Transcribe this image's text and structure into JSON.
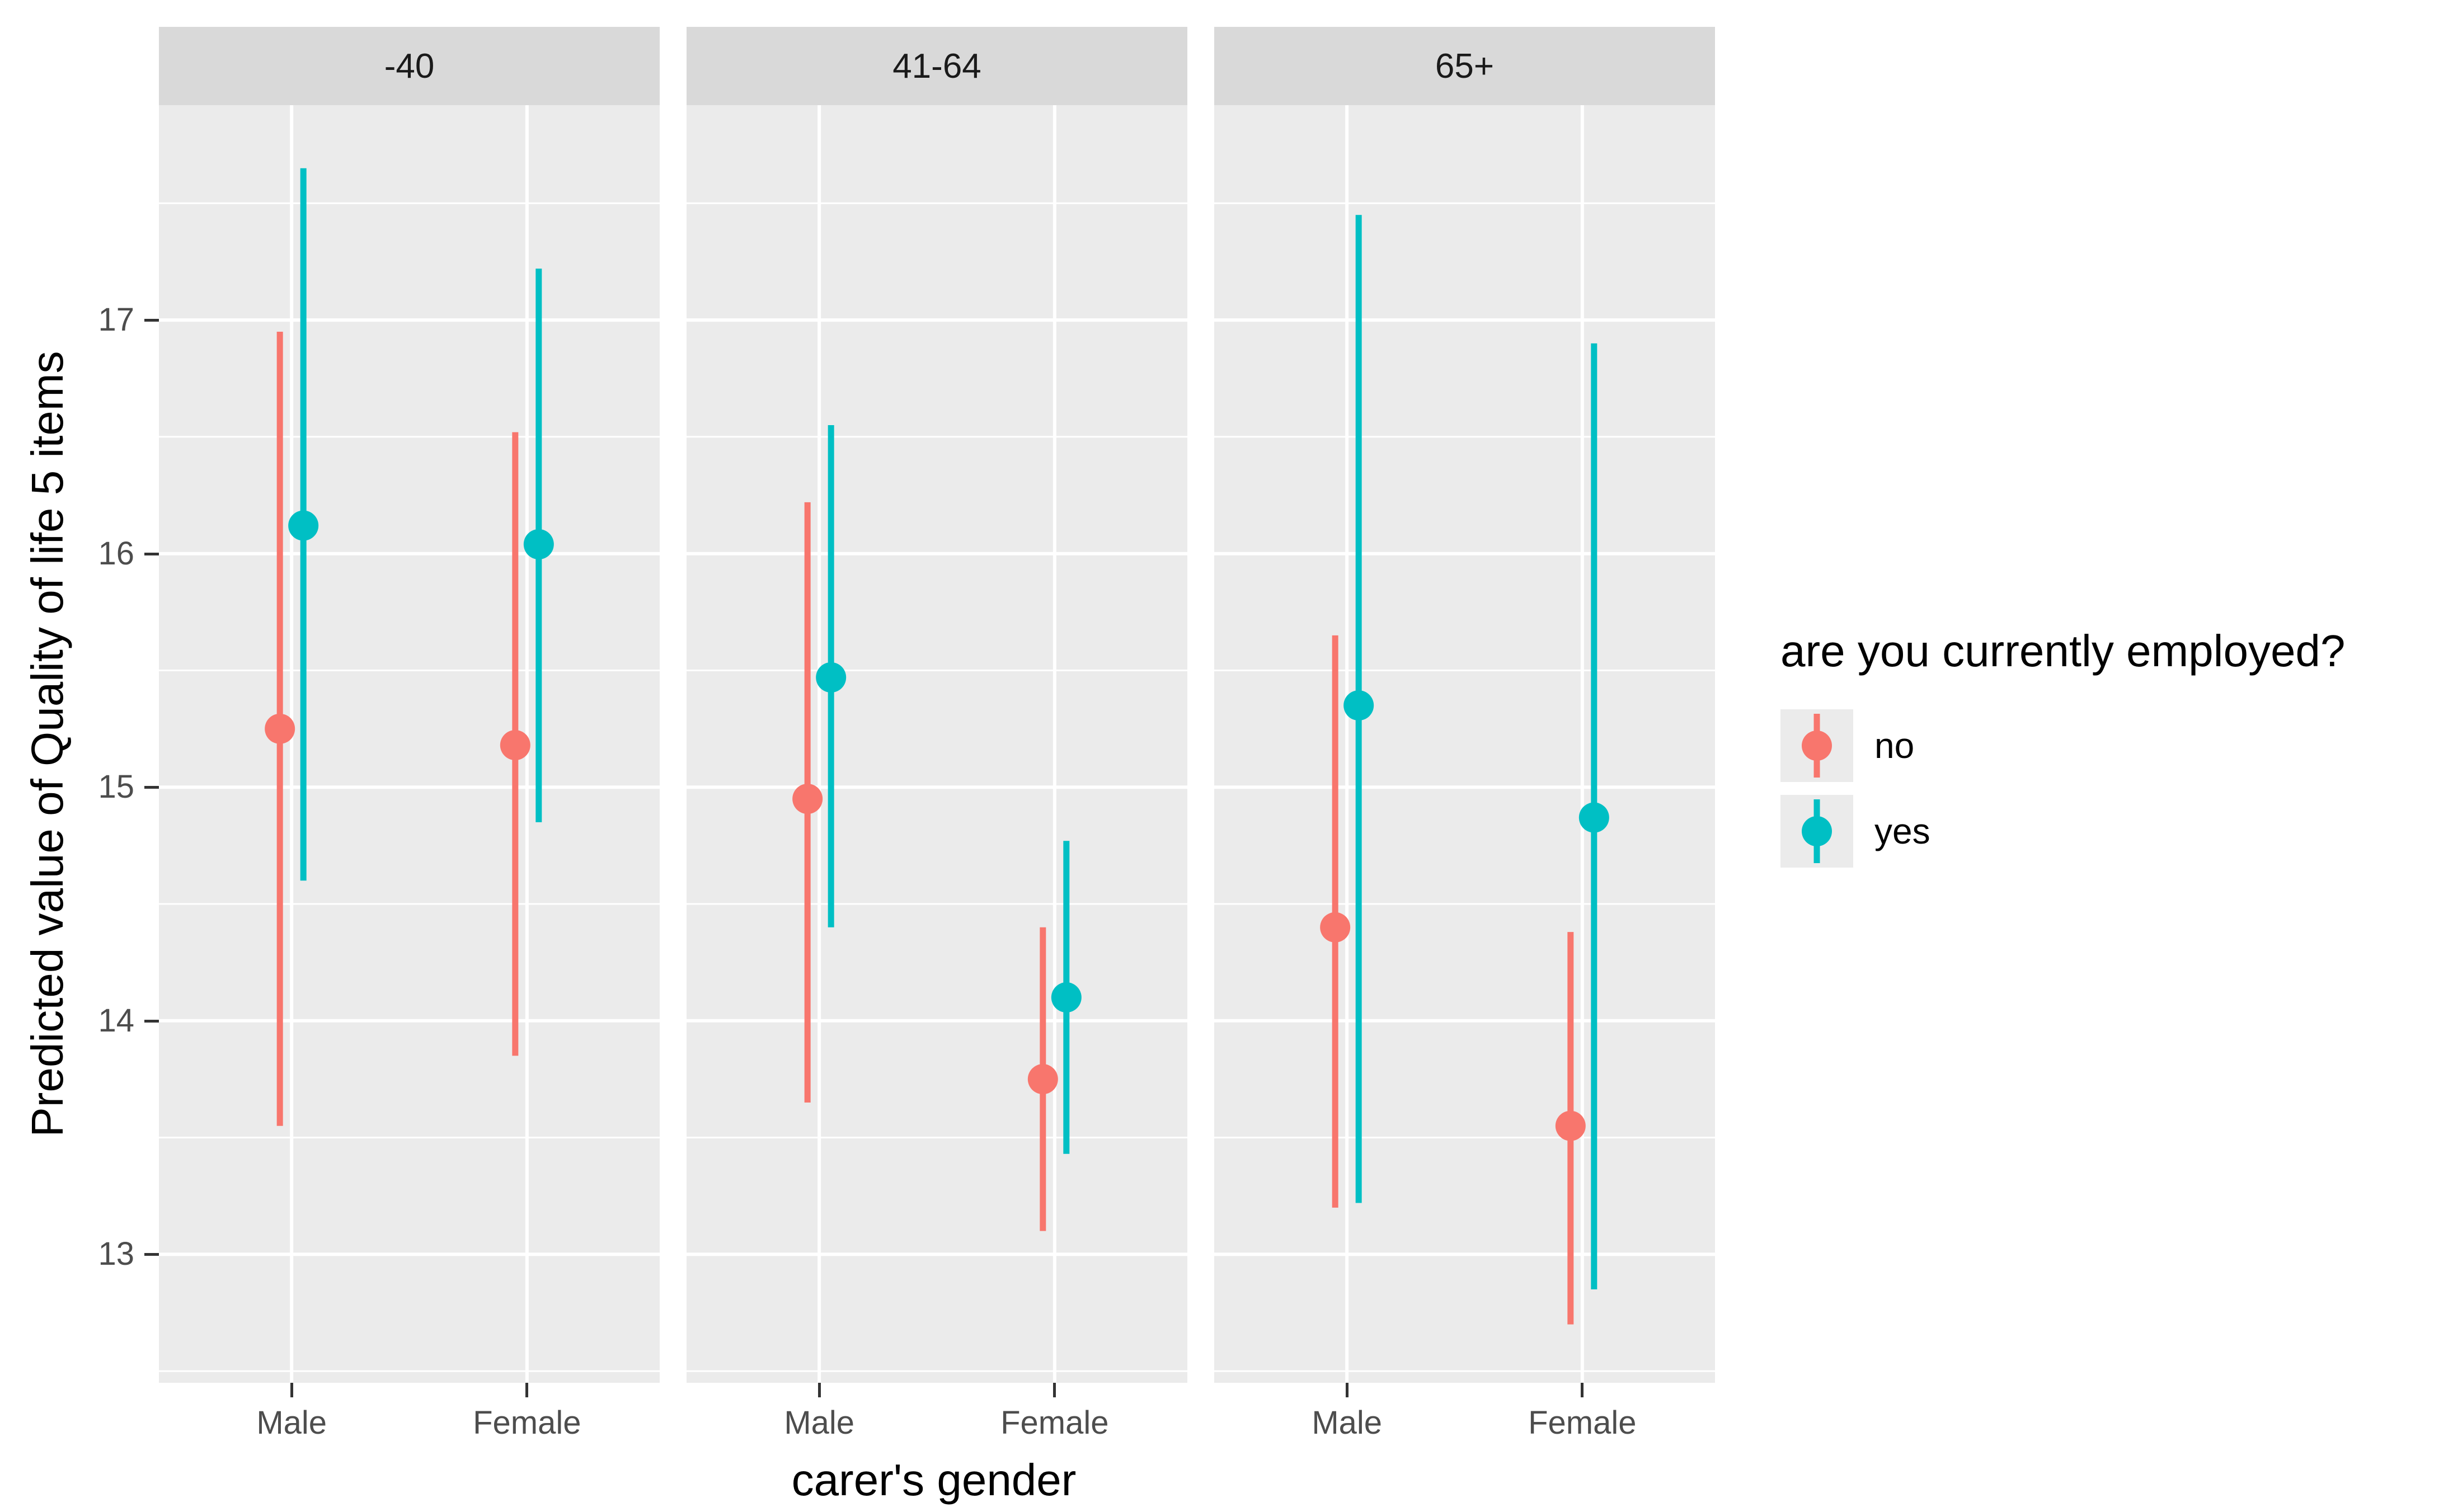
{
  "chart_data": {
    "type": "pointrange",
    "title": "",
    "xlabel": "carer's gender",
    "ylabel": "Predicted value of Quality of life 5 items",
    "facets": [
      "-40",
      "41-64",
      "65+"
    ],
    "categories": [
      "Male",
      "Female"
    ],
    "y_ticks": [
      13,
      14,
      15,
      16,
      17
    ],
    "ylim": [
      12.45,
      17.92
    ],
    "grid": "on",
    "legend_position": "right",
    "legend": {
      "title": "are you currently employed?",
      "entries": [
        {
          "label": "no",
          "color": "#F8766D"
        },
        {
          "label": "yes",
          "color": "#00BFC4"
        }
      ]
    },
    "series": [
      {
        "name": "no",
        "color": "#F8766D",
        "points": [
          {
            "facet": "-40",
            "category": "Male",
            "ymin": 13.55,
            "y": 15.25,
            "ymax": 16.95
          },
          {
            "facet": "-40",
            "category": "Female",
            "ymin": 13.85,
            "y": 15.18,
            "ymax": 16.52
          },
          {
            "facet": "41-64",
            "category": "Male",
            "ymin": 13.65,
            "y": 14.95,
            "ymax": 16.22
          },
          {
            "facet": "41-64",
            "category": "Female",
            "ymin": 13.1,
            "y": 13.75,
            "ymax": 14.4
          },
          {
            "facet": "65+",
            "category": "Male",
            "ymin": 13.2,
            "y": 14.4,
            "ymax": 15.65
          },
          {
            "facet": "65+",
            "category": "Female",
            "ymin": 12.7,
            "y": 13.55,
            "ymax": 14.38
          }
        ]
      },
      {
        "name": "yes",
        "color": "#00BFC4",
        "points": [
          {
            "facet": "-40",
            "category": "Male",
            "ymin": 14.6,
            "y": 16.12,
            "ymax": 17.65
          },
          {
            "facet": "-40",
            "category": "Female",
            "ymin": 14.85,
            "y": 16.04,
            "ymax": 17.22
          },
          {
            "facet": "41-64",
            "category": "Male",
            "ymin": 14.4,
            "y": 15.47,
            "ymax": 16.55
          },
          {
            "facet": "41-64",
            "category": "Female",
            "ymin": 13.43,
            "y": 14.1,
            "ymax": 14.77
          },
          {
            "facet": "65+",
            "category": "Male",
            "ymin": 13.22,
            "y": 15.35,
            "ymax": 17.45
          },
          {
            "facet": "65+",
            "category": "Female",
            "ymin": 12.85,
            "y": 14.87,
            "ymax": 16.9
          }
        ]
      }
    ]
  },
  "style": {
    "panel_bg": "#EBEBEB",
    "strip_bg": "#D9D9D9",
    "grid_major": "#FFFFFF",
    "grid_minor": "#FFFFFF",
    "axis_text": "#4D4D4D",
    "tick_mark": "#333333"
  }
}
